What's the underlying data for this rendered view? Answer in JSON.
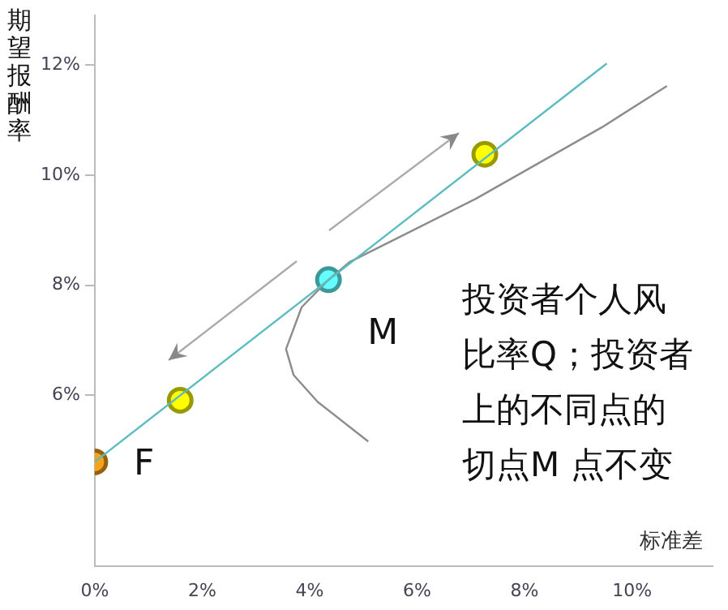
{
  "chart_data": {
    "type": "line",
    "ylabel": "期望报酬率",
    "xlabel": "标准差",
    "xlim": [
      0,
      11.5
    ],
    "ylim": [
      2.9,
      12.9
    ],
    "xticks": [
      {
        "value": 0,
        "label": "0%"
      },
      {
        "value": 2,
        "label": "2%"
      },
      {
        "value": 4,
        "label": "4%"
      },
      {
        "value": 6,
        "label": "6%"
      },
      {
        "value": 8,
        "label": "8%"
      },
      {
        "value": 10,
        "label": "10%"
      }
    ],
    "yticks": [
      {
        "value": 6,
        "label": "6%"
      },
      {
        "value": 8,
        "label": "8%"
      },
      {
        "value": 10,
        "label": "10%"
      },
      {
        "value": 12,
        "label": "12%"
      }
    ],
    "grid": false,
    "legend": false,
    "series": [
      {
        "type": "line",
        "color": "#5bbcc0",
        "x": [
          0,
          9.53
        ],
        "values": [
          4.79,
          12.03
        ],
        "marker": "none"
      },
      {
        "type": "line",
        "color": "#8c8c8c",
        "x": [
          5.09,
          4.15,
          3.7,
          3.56,
          3.85,
          4.35,
          4.74,
          7.09,
          9.44,
          10.65
        ],
        "values": [
          5.16,
          5.88,
          6.37,
          6.84,
          7.6,
          8.1,
          8.42,
          9.57,
          10.87,
          11.62
        ],
        "marker": "none"
      },
      {
        "type": "scatter",
        "colors": [
          "#f7a21b",
          "#ffff00",
          "#66ffff",
          "#ffff00"
        ],
        "x": [
          0,
          1.59,
          4.35,
          7.26
        ],
        "values": [
          4.79,
          5.91,
          8.1,
          10.38
        ],
        "marker": "circle"
      }
    ],
    "annotations": [
      {
        "text": "F",
        "x": 0,
        "y": 4.79
      },
      {
        "text": "M",
        "x": 4.35,
        "y": 8.1
      },
      "投资者个人风",
      "比率Q；投资者",
      "上的不同点的",
      "切点M 点不变"
    ]
  }
}
